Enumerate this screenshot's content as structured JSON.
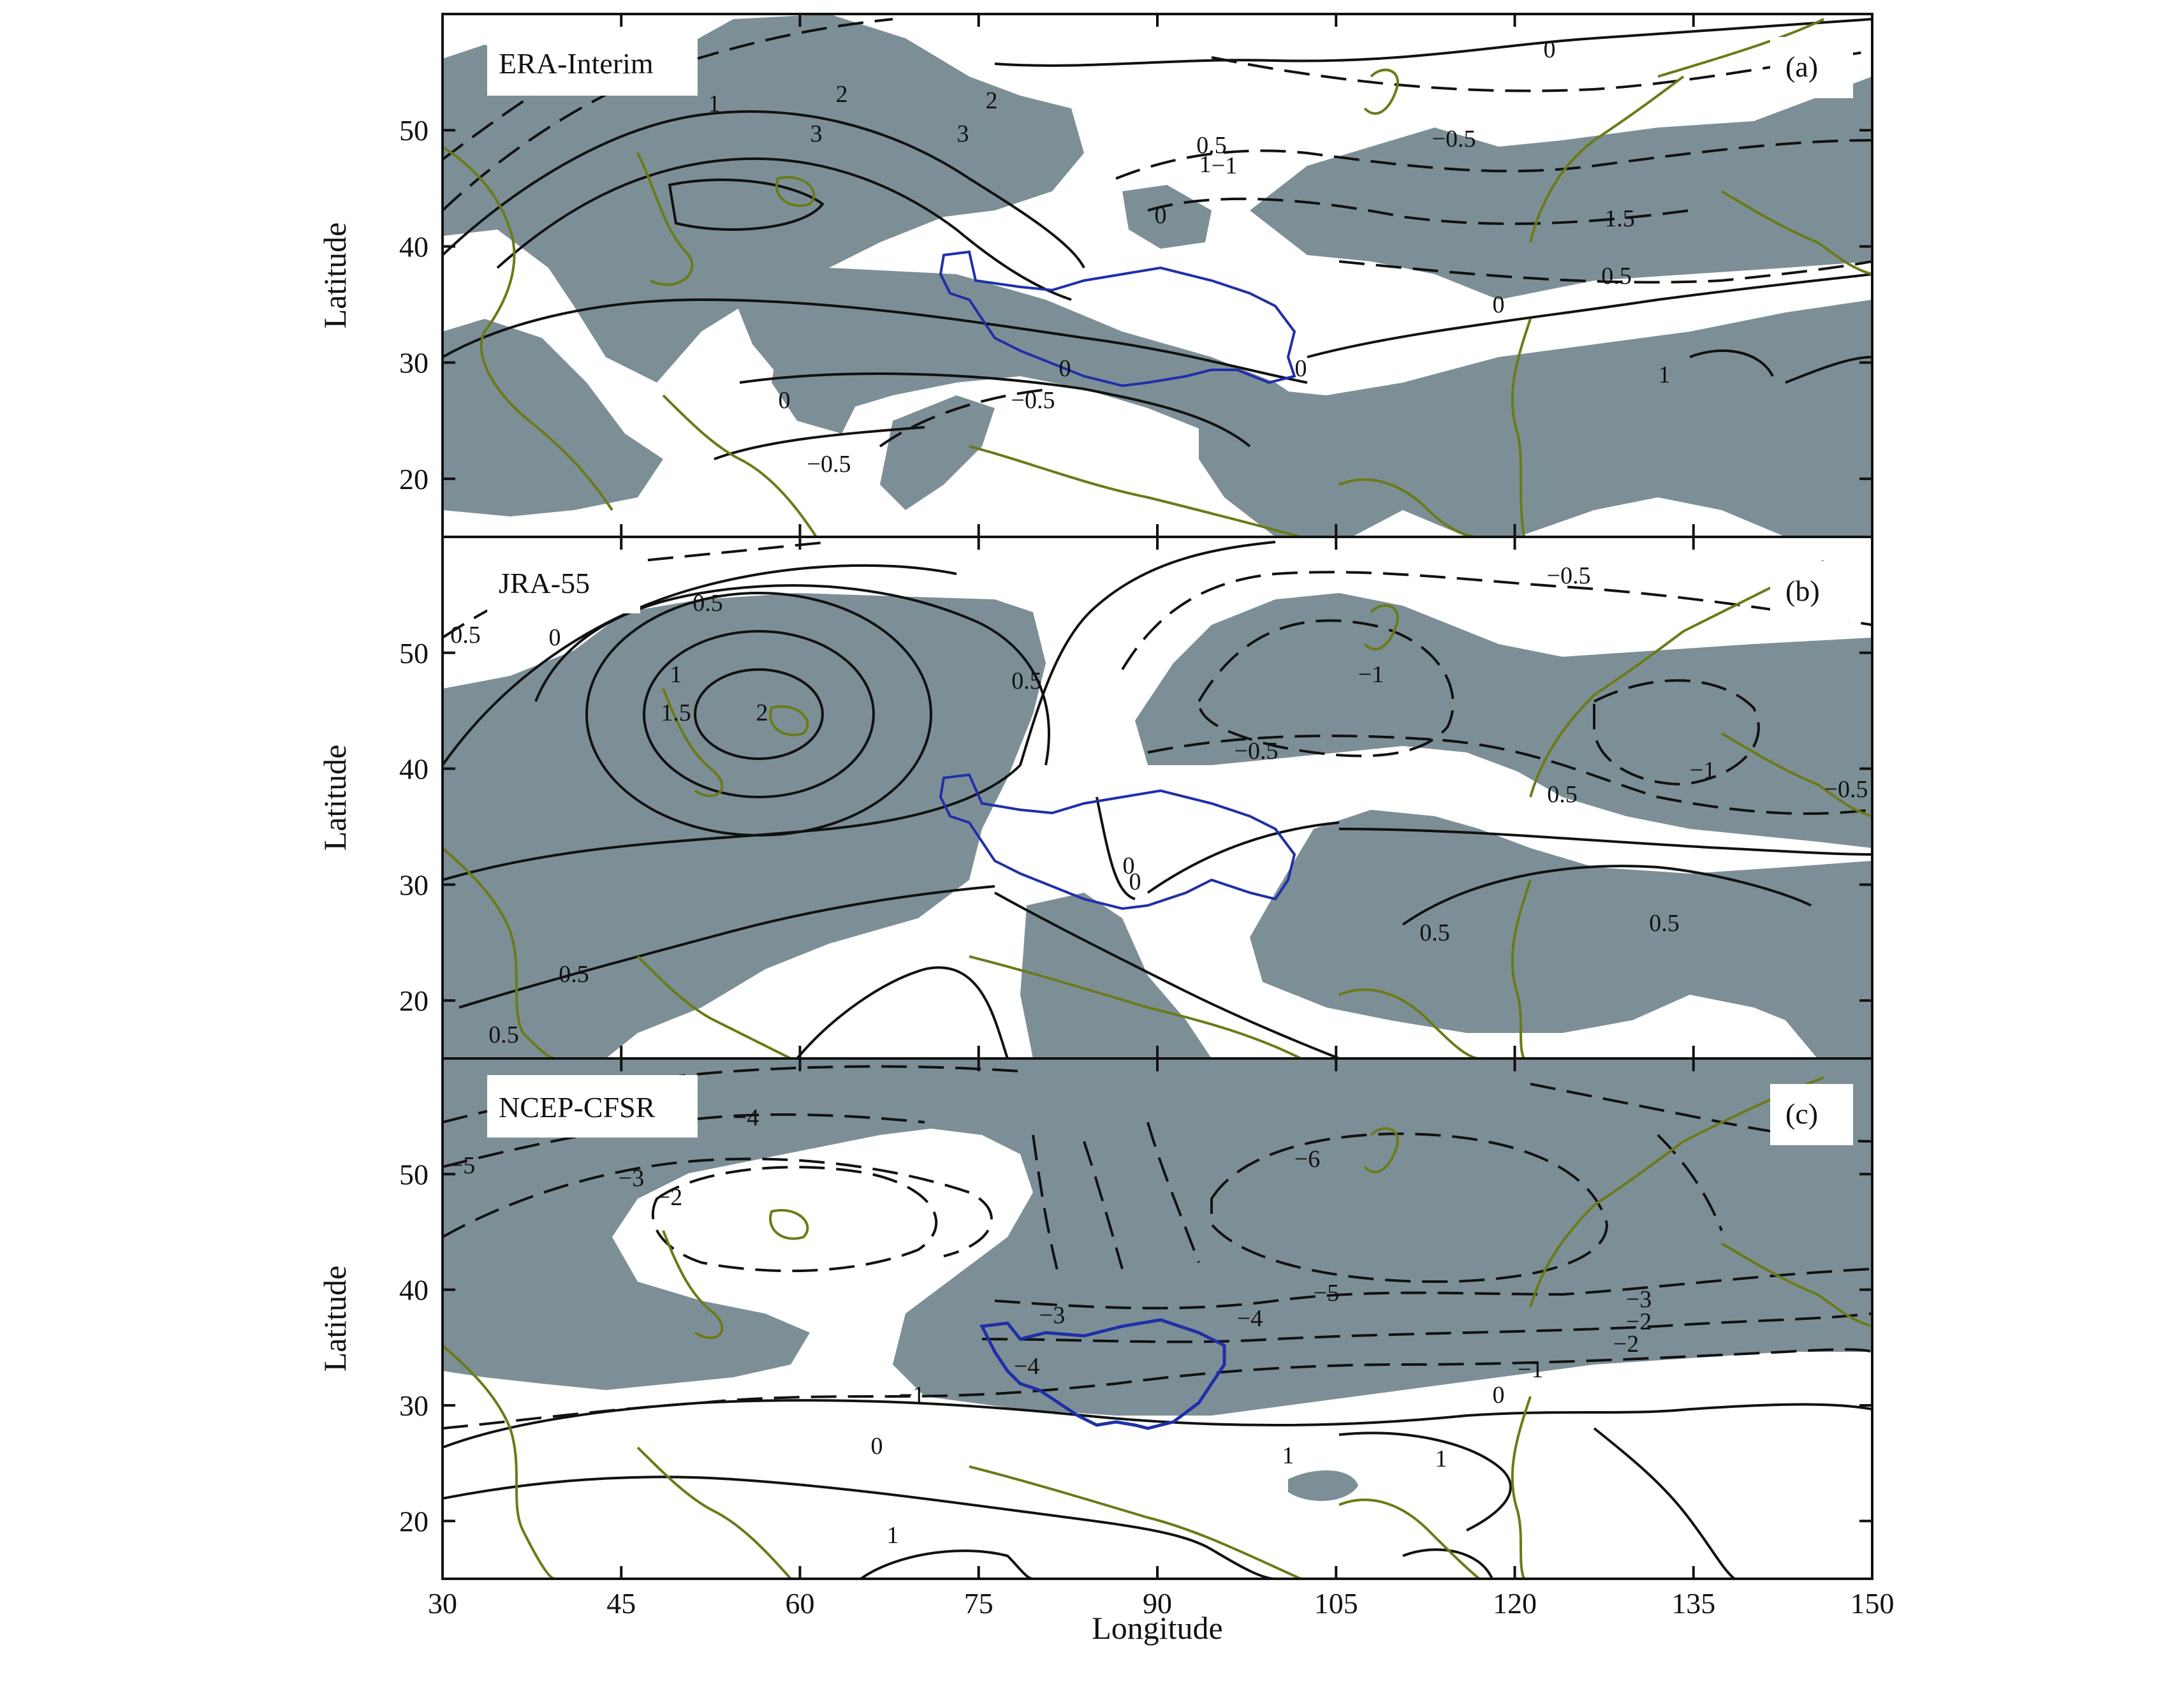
{
  "figure": {
    "panels": [
      {
        "id": "a",
        "dataset": "ERA-Interim",
        "tag": "(a)",
        "contour_labels": [
          "0",
          "1",
          "2",
          "3",
          "3",
          "2",
          "1",
          "0",
          "0.5",
          "−1",
          "−0.5",
          "1.5",
          "0.5",
          "0",
          "−0.5",
          "0",
          "−0.5",
          "0",
          "1",
          "0"
        ]
      },
      {
        "id": "b",
        "dataset": "JRA-55",
        "tag": "(b)",
        "contour_labels": [
          "0.5",
          "0",
          "0.5",
          "1",
          "1.5",
          "2",
          "0.5",
          "−0.5",
          "−1",
          "−0.5",
          "−1",
          "−0.5",
          "0.5",
          "0",
          "0",
          "0.5",
          "0.5",
          "0.5",
          "0.5"
        ]
      },
      {
        "id": "c",
        "dataset": "NCEP-CFSR",
        "tag": "(c)",
        "contour_labels": [
          "−4",
          "−5",
          "−3",
          "−2",
          "−6",
          "−5",
          "−4",
          "−3",
          "−4",
          "−2",
          "−3",
          "−2",
          "−1",
          "−1",
          "0",
          "0",
          "1",
          "1",
          "1"
        ]
      }
    ],
    "x_axis": {
      "title": "Longitude",
      "ticks": [
        "30",
        "45",
        "60",
        "75",
        "90",
        "105",
        "120",
        "135",
        "150"
      ],
      "range": [
        30,
        150
      ]
    },
    "y_axis": {
      "title": "Latitude",
      "ticks": [
        "20",
        "30",
        "40",
        "50"
      ],
      "range": [
        15,
        60
      ]
    },
    "colors": {
      "shading": "#7d8f96",
      "coastline": "#6b7a17",
      "plateau_outline": "#1f2fa8",
      "contour": "#111111"
    }
  }
}
